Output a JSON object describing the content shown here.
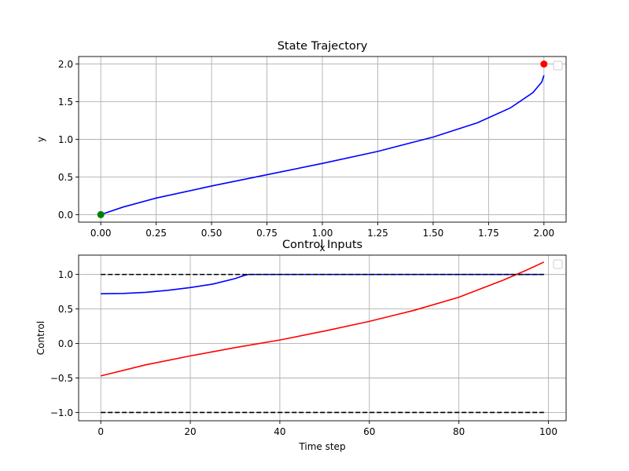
{
  "chart_data": [
    {
      "type": "line",
      "title": "State Trajectory",
      "xlabel": "x",
      "ylabel": "y",
      "xlim": [
        -0.1,
        2.1
      ],
      "ylim": [
        -0.1,
        2.1
      ],
      "xticks": [
        0.0,
        0.25,
        0.5,
        0.75,
        1.0,
        1.25,
        1.5,
        1.75,
        2.0
      ],
      "xtick_labels": [
        "0.00",
        "0.25",
        "0.50",
        "0.75",
        "1.00",
        "1.25",
        "1.50",
        "1.75",
        "2.00"
      ],
      "yticks": [
        0.0,
        0.5,
        1.0,
        1.5,
        2.0
      ],
      "ytick_labels": [
        "0.0",
        "0.5",
        "1.0",
        "1.5",
        "2.0"
      ],
      "grid": true,
      "legend": "top-right (empty)",
      "series": [
        {
          "color": "#0000ff",
          "x": [
            0.0,
            0.1,
            0.25,
            0.5,
            0.75,
            1.0,
            1.25,
            1.5,
            1.7,
            1.85,
            1.95,
            1.99,
            2.0
          ],
          "y": [
            0.0,
            0.1,
            0.22,
            0.38,
            0.53,
            0.68,
            0.84,
            1.03,
            1.22,
            1.42,
            1.62,
            1.76,
            1.85
          ]
        }
      ],
      "markers": [
        {
          "x": 0.0,
          "y": 0.0,
          "color": "#008000"
        },
        {
          "x": 2.0,
          "y": 2.0,
          "color": "#ff0000"
        }
      ]
    },
    {
      "type": "line",
      "title": "Control Inputs",
      "xlabel": "Time step",
      "ylabel": "Control",
      "xlim": [
        -4.95,
        103.95
      ],
      "ylim": [
        -1.12,
        1.28
      ],
      "xticks": [
        0,
        20,
        40,
        60,
        80,
        100
      ],
      "xtick_labels": [
        "0",
        "20",
        "40",
        "60",
        "80",
        "100"
      ],
      "yticks": [
        -1.0,
        -0.5,
        0.0,
        0.5,
        1.0
      ],
      "ytick_labels": [
        "−1.0",
        "−0.5",
        "0.0",
        "0.5",
        "1.0"
      ],
      "grid": true,
      "legend": "top-right (empty)",
      "series": [
        {
          "color": "#0000ff",
          "x": [
            0,
            5,
            10,
            15,
            20,
            25,
            30,
            32,
            33,
            40,
            50,
            60,
            70,
            80,
            90,
            99
          ],
          "y": [
            0.72,
            0.725,
            0.74,
            0.77,
            0.81,
            0.86,
            0.94,
            0.985,
            1.0,
            1.0,
            1.0,
            1.0,
            1.0,
            1.0,
            1.0,
            1.0
          ]
        },
        {
          "color": "#ff0000",
          "x": [
            0,
            10,
            20,
            30,
            40,
            50,
            60,
            70,
            80,
            90,
            95,
            99
          ],
          "y": [
            -0.47,
            -0.31,
            -0.18,
            -0.06,
            0.05,
            0.18,
            0.32,
            0.48,
            0.67,
            0.92,
            1.06,
            1.18
          ]
        },
        {
          "color": "#000000",
          "dashed": true,
          "x": [
            0,
            99
          ],
          "y": [
            1.0,
            1.0
          ]
        },
        {
          "color": "#000000",
          "dashed": true,
          "x": [
            0,
            99
          ],
          "y": [
            -1.0,
            -1.0
          ]
        }
      ]
    }
  ]
}
